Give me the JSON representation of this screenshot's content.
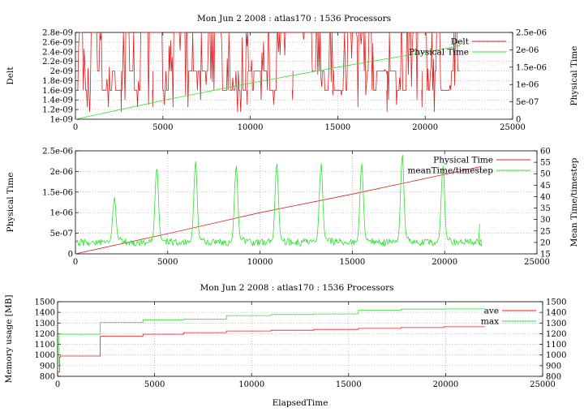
{
  "colors": {
    "red": "#e02020",
    "green": "#30e030",
    "grid": "#a0a0a0",
    "frame": "#000000",
    "white": "#ffffff"
  },
  "chart_data": [
    {
      "type": "line",
      "title": "Mon Jun 2 2008 : atlas170 : 1536 Processors",
      "xlim": [
        0,
        25000
      ],
      "x_ticks": [
        "0",
        "5000",
        "10000",
        "15000",
        "20000",
        "25000"
      ],
      "y_left_label": "Delt",
      "y_left_lim": [
        1e-09,
        2.8e-09
      ],
      "y_left_ticks": [
        "1e-09",
        "1.2e-09",
        "1.4e-09",
        "1.6e-09",
        "1.8e-09",
        "2e-09",
        "2.2e-09",
        "2.4e-09",
        "2.6e-09",
        "2.8e-09"
      ],
      "y_right_label": "Physical Time",
      "y_right_lim": [
        0,
        2.5e-06
      ],
      "y_right_ticks": [
        "0",
        "5e-07",
        "1e-06",
        "1.5e-06",
        "2e-06",
        "2.5e-06"
      ],
      "grid": true,
      "legend_position": "top-right",
      "series": [
        {
          "name": "Delt",
          "axis": "left",
          "color": "#e02020",
          "style": "noisy-switching",
          "x_range": [
            0,
            22000
          ],
          "levels": [
            1.6e-09,
            2e-09,
            2.8e-09
          ],
          "dips": [
            1.15e-09,
            1.25e-09,
            1.3e-09,
            1.4e-09,
            1.5e-09
          ],
          "approx_dips_x": [
            2600,
            4400,
            9800,
            12400,
            14700,
            17800,
            19800
          ]
        },
        {
          "name": "Physical Time",
          "axis": "right",
          "color": "#30e030",
          "x": [
            0,
            5000,
            10000,
            15000,
            20000,
            22000
          ],
          "y": [
            0,
            5.4e-07,
            1.04e-06,
            1.5e-06,
            1.93e-06,
            2.12e-06
          ]
        }
      ]
    },
    {
      "type": "line",
      "title": "",
      "xlim": [
        0,
        25000
      ],
      "x_ticks": [
        "0",
        "5000",
        "10000",
        "15000",
        "20000",
        "25000"
      ],
      "y_left_label": "Physical Time",
      "y_left_lim": [
        0,
        2.5e-06
      ],
      "y_left_ticks": [
        "0",
        "5e-07",
        "1e-06",
        "1.5e-06",
        "2e-06",
        "2.5e-06"
      ],
      "y_right_label": "Mean Time/timestep",
      "y_right_lim": [
        15,
        60
      ],
      "y_right_ticks": [
        "15",
        "20",
        "25",
        "30",
        "35",
        "40",
        "45",
        "50",
        "55",
        "60"
      ],
      "grid": true,
      "legend_position": "top-right",
      "series": [
        {
          "name": "Physical Time",
          "axis": "left",
          "color": "#e02020",
          "x": [
            0,
            5000,
            10000,
            15000,
            20000,
            22000
          ],
          "y": [
            0,
            4.9e-07,
            1e-06,
            1.45e-06,
            1.93e-06,
            2.12e-06
          ]
        },
        {
          "name": "meanTime/timestep",
          "axis": "right",
          "color": "#30e030",
          "style": "baseline-with-spikes",
          "x_range": [
            0,
            22000
          ],
          "baseline": 20,
          "spike_x": [
            2100,
            4400,
            6500,
            8700,
            10900,
            13300,
            15500,
            17700,
            19900
          ],
          "spike_y": [
            38,
            52,
            54,
            52,
            53,
            53,
            53,
            57,
            52
          ],
          "end_x": 21900,
          "end_y": 28
        }
      ]
    },
    {
      "type": "line",
      "title": "Mon Jun 2 2008 : atlas170 : 1536 Processors",
      "xlim": [
        0,
        25000
      ],
      "x_ticks": [
        "0",
        "5000",
        "10000",
        "15000",
        "20000",
        "25000"
      ],
      "xlabel": "ElapsedTime",
      "y_left_label": "Memory usage [MB]",
      "y_left_lim": [
        800,
        1500
      ],
      "y_left_ticks": [
        "800",
        "900",
        "1000",
        "1100",
        "1200",
        "1300",
        "1400",
        "1500"
      ],
      "y_right_lim": [
        800,
        1500
      ],
      "y_right_ticks": [
        "800",
        "900",
        "1000",
        "1100",
        "1200",
        "1300",
        "1400",
        "1500"
      ],
      "grid": true,
      "legend_position": "top-right",
      "series": [
        {
          "name": "ave",
          "color": "#e02020",
          "x": [
            0,
            100,
            150,
            200,
            2050,
            2200,
            4400,
            6500,
            8700,
            11000,
            13200,
            15500,
            17700,
            19900,
            22000
          ],
          "y": [
            840,
            980,
            990,
            990,
            990,
            1175,
            1195,
            1210,
            1225,
            1232,
            1240,
            1250,
            1257,
            1265,
            1270
          ]
        },
        {
          "name": "max",
          "color": "#30e030",
          "x": [
            0,
            80,
            120,
            1900,
            2200,
            4400,
            6500,
            8700,
            11000,
            13200,
            15500,
            17700,
            19900,
            22000
          ],
          "y": [
            900,
            1200,
            1195,
            1195,
            1305,
            1330,
            1335,
            1370,
            1380,
            1385,
            1420,
            1430,
            1432,
            1438
          ]
        }
      ]
    }
  ]
}
